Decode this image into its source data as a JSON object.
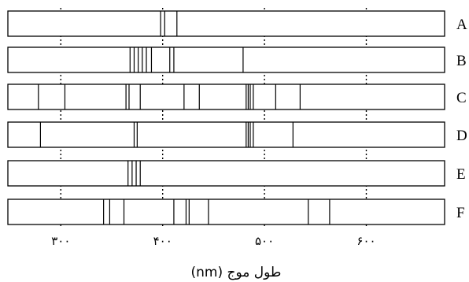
{
  "spectra": [
    {
      "label": "A",
      "lines": [
        398,
        402,
        414
      ]
    },
    {
      "label": "B",
      "lines": [
        368,
        372,
        376,
        380,
        384,
        389,
        407,
        411,
        479
      ]
    },
    {
      "label": "C",
      "lines": [
        278,
        304,
        364,
        367,
        378,
        421,
        436,
        482,
        484,
        486,
        489,
        511,
        535
      ]
    },
    {
      "label": "D",
      "lines": [
        280,
        372,
        375,
        482,
        484,
        486,
        489,
        528
      ]
    },
    {
      "label": "E",
      "lines": [
        366,
        370,
        374,
        378
      ]
    },
    {
      "label": "F",
      "lines": [
        342,
        348,
        362,
        411,
        423,
        426,
        445,
        543,
        564
      ]
    }
  ],
  "axis": {
    "min": 248,
    "max": 600,
    "gridlines": [
      300,
      400,
      500,
      600
    ],
    "tick_labels": [
      "٣٠٠",
      "۴٠٠",
      "۵٠٠",
      "۶٠٠"
    ],
    "title": "طول موج (nm)"
  }
}
